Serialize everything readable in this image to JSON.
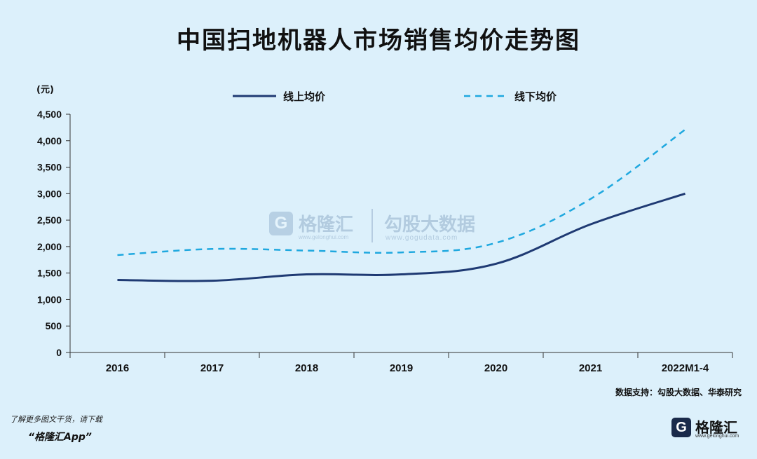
{
  "title": "中国扫地机器人市场销售均价走势图",
  "chart_data": {
    "type": "line",
    "title": "中国扫地机器人市场销售均价走势图",
    "ylabel": "(元)",
    "xlabel": "",
    "categories": [
      "2016",
      "2017",
      "2018",
      "2019",
      "2020",
      "2021",
      "2022M1-4"
    ],
    "ylim": [
      0,
      4500
    ],
    "yticks": [
      0,
      500,
      1000,
      1500,
      2000,
      2500,
      3000,
      3500,
      4000,
      4500
    ],
    "ytick_labels": [
      "0",
      "500",
      "1,000",
      "1,500",
      "2,000",
      "2,500",
      "3,000",
      "3,500",
      "4,000",
      "4,500"
    ],
    "grid": false,
    "legend": "top",
    "series": [
      {
        "name": "线上均价",
        "color": "#1f3a73",
        "style": "solid",
        "values": [
          1370,
          1355,
          1475,
          1475,
          1675,
          2420,
          3000
        ]
      },
      {
        "name": "线下均价",
        "color": "#1fa8df",
        "style": "dashed",
        "values": [
          1840,
          1955,
          1925,
          1890,
          2070,
          2900,
          4210
        ]
      }
    ]
  },
  "source": "数据支持：勾股大数据、华泰研究",
  "footer": {
    "note": "了解更多图文干货，请下载",
    "app": "“格隆汇App”"
  },
  "brand": {
    "icon": "G",
    "name": "格隆汇",
    "url": "www.gelonghui.com"
  },
  "watermark": {
    "logo_icon": "G",
    "logo_name": "格隆汇",
    "logo_url": "www.gelonghui.com",
    "data_name": "勾股大数据",
    "data_url": "www.gogudata.com"
  }
}
